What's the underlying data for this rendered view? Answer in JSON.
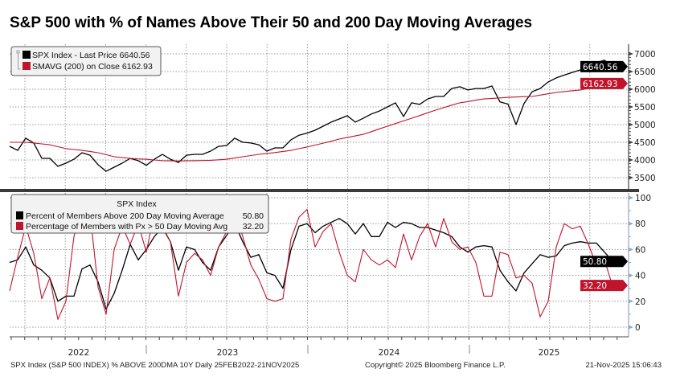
{
  "title": "S&P 500 with % of Names Above Their 50 and 200 Day Moving Averages",
  "colors": {
    "black_series": "#000000",
    "red_series": "#c0142c",
    "grid": "#9a9a9a",
    "lower_axis": "#8ea6c8"
  },
  "chart_data": [
    {
      "type": "line",
      "panel": "top",
      "x_start": "2022-02-25",
      "x_end": "2025-11-21",
      "x_sampling": "evenly spaced",
      "ylim": [
        3200,
        7200
      ],
      "yticks": [
        "3500",
        "4000",
        "4500",
        "5000",
        "5500",
        "6000",
        "6500",
        "7000"
      ],
      "grid": true,
      "legend_position": "top-left",
      "series": [
        {
          "name": "SPX Index - Last Price",
          "last_label": "6640.56",
          "color": "#000000",
          "values": [
            4386,
            4270,
            4615,
            4480,
            4045,
            4045,
            3820,
            3910,
            4020,
            4205,
            4135,
            3865,
            3680,
            3795,
            3910,
            4045,
            3980,
            3850,
            4020,
            4160,
            4020,
            3930,
            4135,
            4160,
            4160,
            4250,
            4385,
            4410,
            4615,
            4500,
            4480,
            4430,
            4250,
            4340,
            4340,
            4570,
            4700,
            4760,
            4840,
            4955,
            5070,
            5160,
            5250,
            5070,
            5180,
            5300,
            5385,
            5500,
            5615,
            5230,
            5615,
            5570,
            5725,
            5795,
            5795,
            6020,
            6070,
            5980,
            6020,
            6020,
            6090,
            5640,
            5580,
            5000,
            5600,
            5930,
            6020,
            6205,
            6320,
            6400,
            6475,
            6545,
            6660,
            6750,
            6820,
            6641
          ]
        },
        {
          "name": "SMAVG (200)  on Close",
          "last_label": "6162.93",
          "color": "#c0142c",
          "values": [
            4500,
            4500,
            4500,
            4480,
            4455,
            4430,
            4375,
            4320,
            4295,
            4270,
            4240,
            4205,
            4150,
            4090,
            4070,
            4045,
            4030,
            4020,
            4000,
            3980,
            3975,
            3970,
            3975,
            3980,
            3985,
            3990,
            4005,
            4020,
            4055,
            4090,
            4125,
            4160,
            4185,
            4210,
            4240,
            4270,
            4320,
            4365,
            4420,
            4475,
            4530,
            4590,
            4635,
            4680,
            4725,
            4800,
            4880,
            4955,
            5030,
            5105,
            5180,
            5255,
            5335,
            5410,
            5480,
            5550,
            5615,
            5650,
            5690,
            5725,
            5740,
            5755,
            5770,
            5780,
            5790,
            5795,
            5835,
            5870,
            5910,
            5935,
            5960,
            5980,
            6025,
            6070,
            6115,
            6163
          ]
        }
      ]
    },
    {
      "type": "line",
      "panel": "bottom",
      "legend_title": "SPX Index",
      "x_start": "2022-02-25",
      "x_end": "2025-11-21",
      "x_sampling": "evenly spaced",
      "ylim": [
        -5,
        105
      ],
      "yticks": [
        "0",
        "20",
        "40",
        "60",
        "80",
        "100"
      ],
      "grid": true,
      "legend_position": "top-left",
      "series": [
        {
          "name": "Percent of Members Above 200 Day Moving Average",
          "last_label": "50.80",
          "color": "#000000",
          "values": [
            50,
            52,
            62,
            48,
            44,
            38,
            20,
            24,
            24,
            45,
            48,
            35,
            14,
            26,
            44,
            64,
            52,
            60,
            70,
            77,
            66,
            44,
            62,
            60,
            50,
            44,
            62,
            71,
            80,
            66,
            54,
            56,
            42,
            40,
            30,
            60,
            78,
            80,
            73,
            78,
            81,
            84,
            80,
            72,
            80,
            70,
            70,
            81,
            77,
            81,
            80,
            77,
            77,
            75,
            73,
            70,
            62,
            58,
            62,
            63,
            62,
            44,
            35,
            28,
            42,
            49,
            56,
            54,
            55,
            63,
            65,
            66,
            65,
            65,
            58,
            51
          ]
        },
        {
          "name": "Percentage of Members with Px > 50 Day Moving Avg",
          "last_label": "32.20",
          "color": "#c0142c",
          "values": [
            28,
            54,
            78,
            57,
            22,
            38,
            6,
            20,
            70,
            93,
            88,
            31,
            10,
            60,
            78,
            64,
            80,
            58,
            88,
            78,
            66,
            24,
            50,
            57,
            52,
            40,
            62,
            74,
            89,
            70,
            48,
            37,
            22,
            20,
            22,
            68,
            85,
            91,
            62,
            74,
            80,
            58,
            40,
            35,
            60,
            52,
            48,
            52,
            46,
            72,
            52,
            70,
            80,
            62,
            84,
            66,
            60,
            62,
            50,
            24,
            24,
            58,
            56,
            38,
            40,
            34,
            8,
            20,
            62,
            80,
            76,
            78,
            64,
            48,
            52,
            32
          ]
        }
      ]
    }
  ],
  "x_axis": {
    "years": [
      "2022",
      "2023",
      "2024",
      "2025"
    ]
  },
  "footer": {
    "left": "SPX Index (S&P 500 INDEX) % ABOVE 200DMA 10Y Daily 25FEB2022-21NOV2025",
    "center": "Copyright© 2025 Bloomberg Finance L.P.",
    "right": "21-Nov-2025 15:06:43"
  }
}
